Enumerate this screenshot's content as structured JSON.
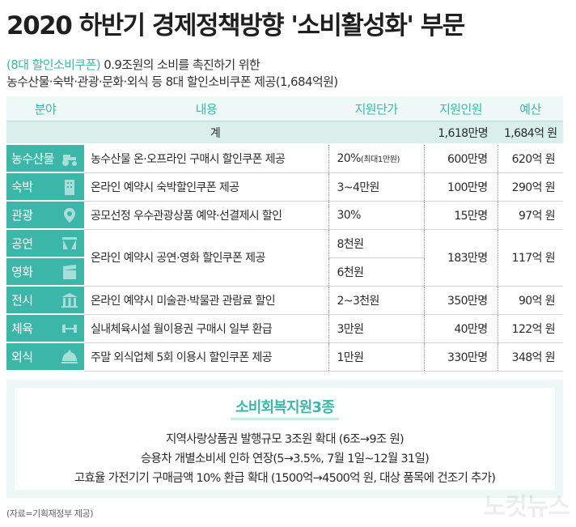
{
  "title": "2020 하반기 경제정책방향 '소비활성화' 부문",
  "subtitle": {
    "accent": "(8대 할인소비쿠폰)",
    "line1_rest": " 0.9조원의 소비를 촉진하기 위한",
    "line2": "농수산물·숙박·관광·문화·외식 등 8대 할인소비쿠폰 제공(1,684억원)"
  },
  "table": {
    "headers": [
      "분야",
      "내용",
      "지원단가",
      "지원인원",
      "예산"
    ],
    "total": {
      "label": "계",
      "people": "1,618만명",
      "budget": "1,684억 원"
    },
    "rows": [
      {
        "category": "농수산물",
        "icon": "tractor-icon",
        "content": "농수산물 온·오프라인 구매시 할인쿠폰 제공",
        "unit": "20%",
        "unit_note": "(최대1만원)",
        "people": "600만명",
        "budget": "620억 원"
      },
      {
        "category": "숙박",
        "icon": "building-icon",
        "content": "온라인 예약시 숙박할인쿠폰 제공",
        "unit": "3~4만원",
        "people": "100만명",
        "budget": "290억 원"
      },
      {
        "category": "관광",
        "icon": "map-pin-icon",
        "content": "공모선정 우수관광상품 예약·선결제시 할인",
        "unit": "30%",
        "people": "15만명",
        "budget": "97억 원"
      },
      {
        "category": "공연",
        "icon": "theater-icon",
        "unit": "8천원"
      },
      {
        "category": "영화",
        "icon": "film-clapper-icon",
        "unit": "6천원"
      },
      {
        "category": "전시",
        "icon": "museum-icon",
        "content": "온라인 예약시 미술관·박물관 관람료 할인",
        "unit": "2~3천원",
        "people": "350만명",
        "budget": "90억 원"
      },
      {
        "category": "체육",
        "icon": "dumbbell-icon",
        "content": "실내체육시설 월이용권 구매시 일부 환급",
        "unit": "3만원",
        "people": "40만명",
        "budget": "122억 원"
      },
      {
        "category": "외식",
        "icon": "cloche-icon",
        "content": "주말 외식업체 5회 이용시 할인쿠폰 제공",
        "unit": "1만원",
        "people": "330만명",
        "budget": "348억 원"
      }
    ],
    "merged_culture": {
      "content": "온라인 예약시 공연·영화 할인쿠폰 제공",
      "people": "183만명",
      "budget": "117억 원"
    }
  },
  "recovery_box": {
    "title": "소비회복지원3종",
    "items": [
      "지역사랑상품권 발행규모 3조원 확대 (6조→9조 원)",
      "승용차 개별소비세 인하 연장(5→3.5%, 7월 1일~12월 31일)",
      "고효율 가전기기 구매금액 10% 환급 확대 (1500억→4500억 원, 대상 품목에 건조기 추가)"
    ]
  },
  "source": "(자료=기획재정부 제공)",
  "watermark": "노컷뉴스",
  "colors": {
    "accent": "#3bb8ac",
    "category_bg": "#3db6aa",
    "total_bg": "#d8efec",
    "header_bg": "#eef8f7"
  }
}
